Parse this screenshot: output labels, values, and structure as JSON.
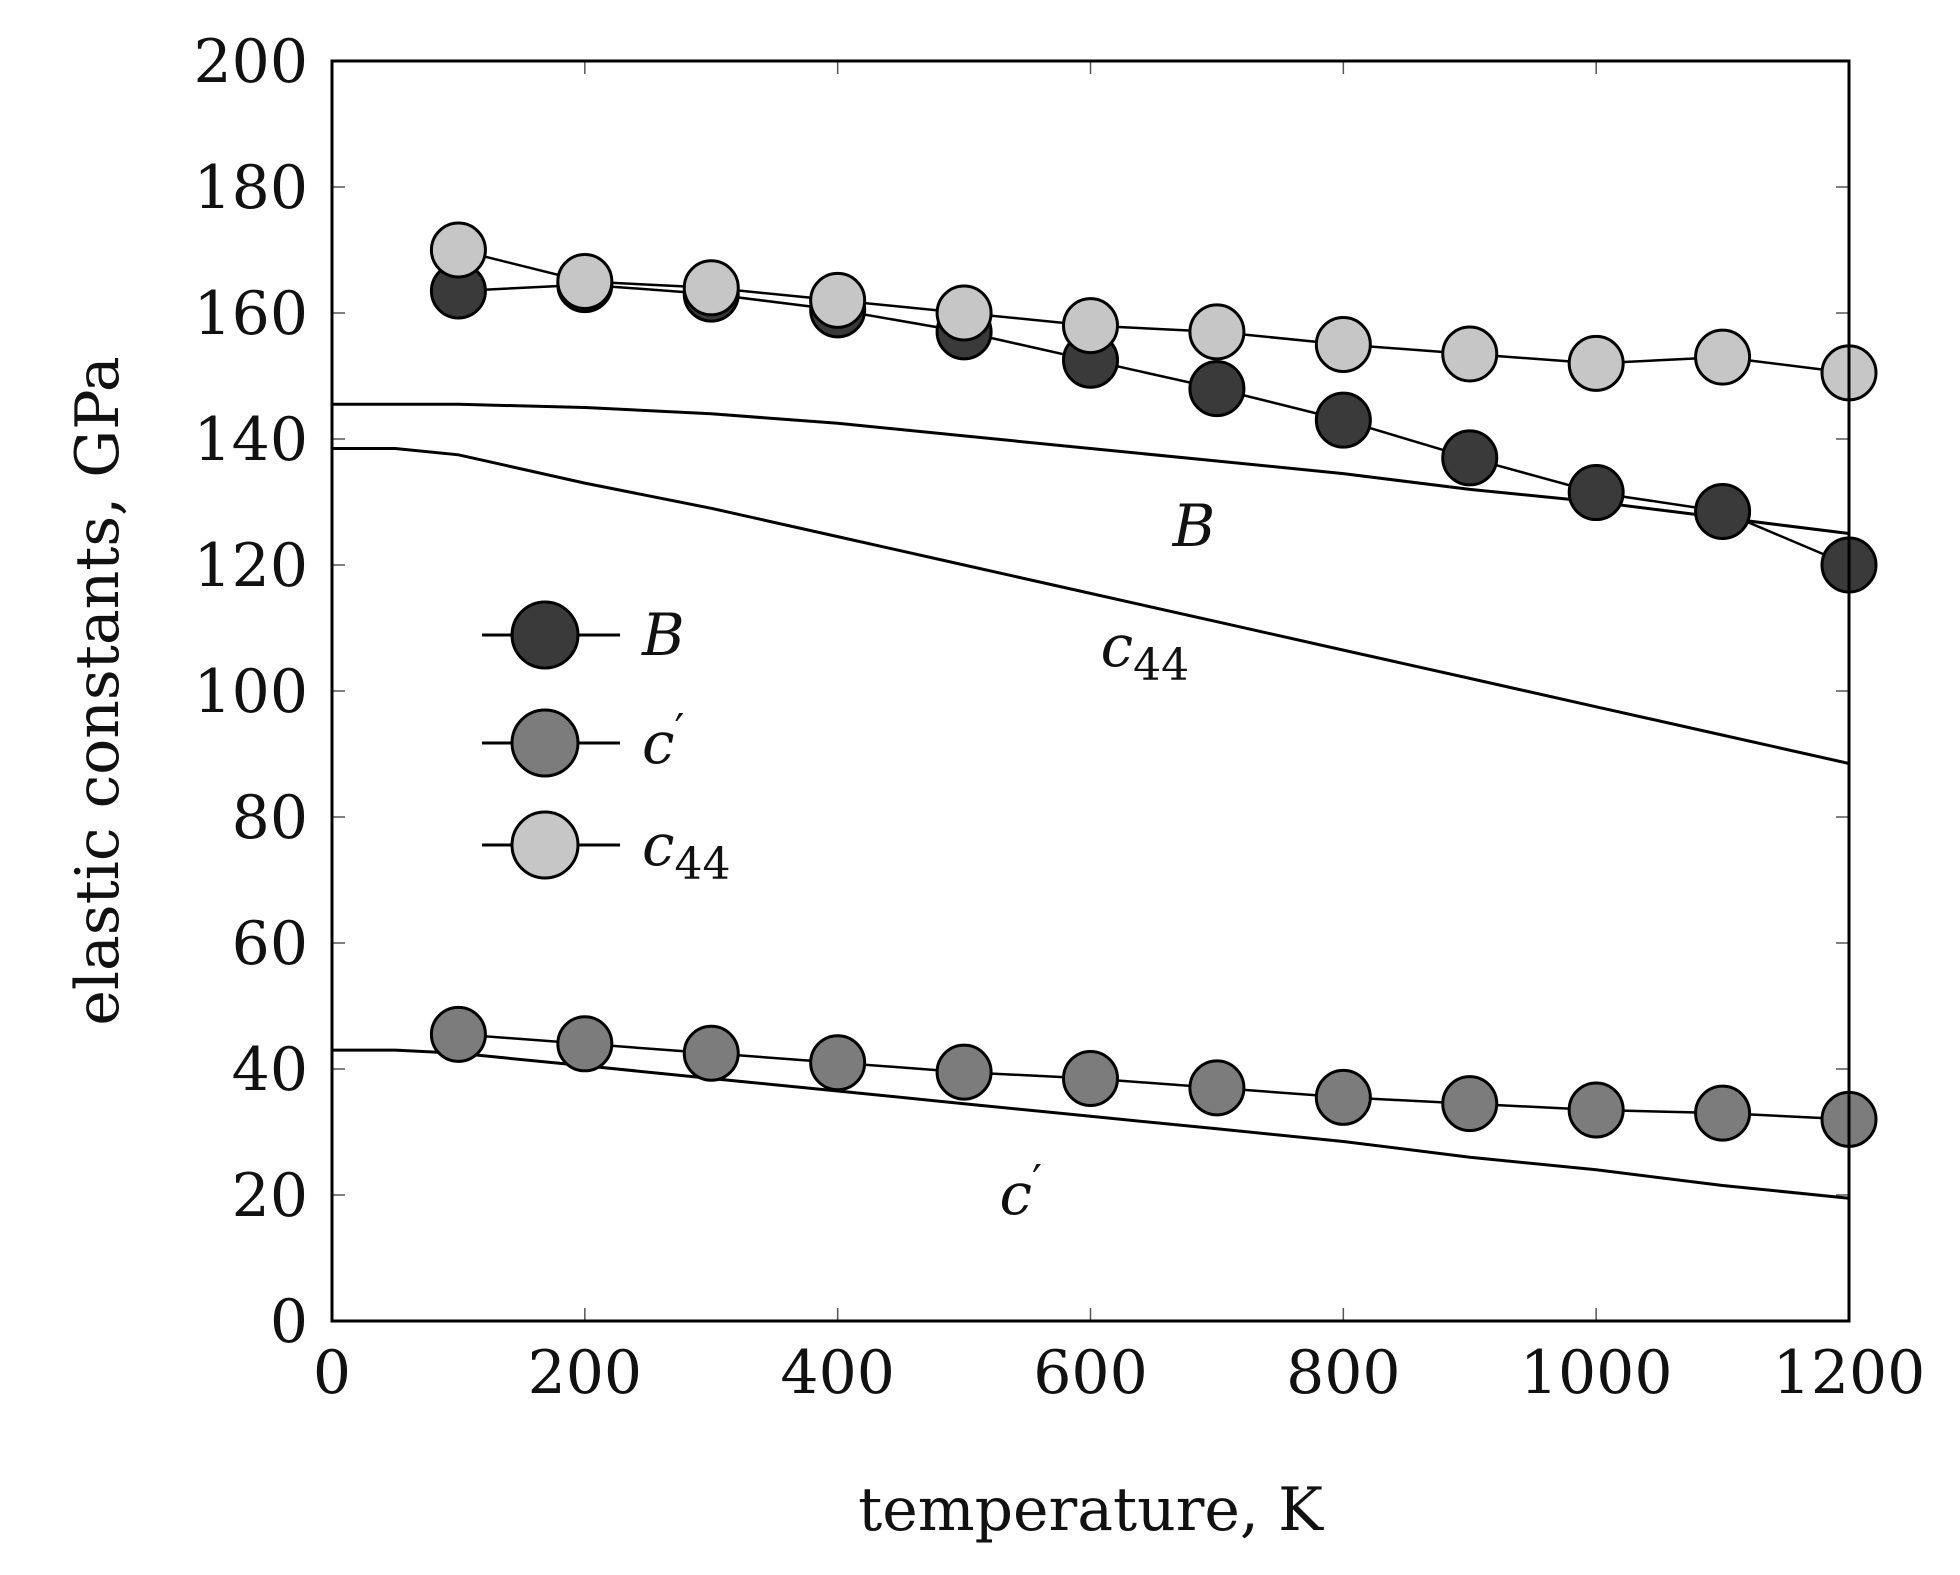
{
  "chart_data": {
    "type": "line",
    "title": "",
    "xlabel": "temperature, K",
    "ylabel": "elastic constants, GPa",
    "xlim": [
      0,
      1200
    ],
    "ylim": [
      0,
      200
    ],
    "xticks": [
      0,
      200,
      400,
      600,
      800,
      1000,
      1200
    ],
    "yticks": [
      0,
      20,
      40,
      60,
      80,
      100,
      120,
      140,
      160,
      180,
      200
    ],
    "grid": false,
    "legend_position": "center-left",
    "series": [
      {
        "name": "B",
        "color": "#3a3a3a",
        "marker": "circle",
        "x": [
          100,
          200,
          300,
          400,
          500,
          600,
          700,
          800,
          900,
          1000,
          1100,
          1200
        ],
        "values": [
          163.5,
          164.5,
          163,
          160.5,
          157,
          152.5,
          148,
          143,
          137,
          131.5,
          128.5,
          120
        ]
      },
      {
        "name": "c′",
        "color": "#7c7c7c",
        "marker": "circle",
        "x": [
          100,
          200,
          300,
          400,
          500,
          600,
          700,
          800,
          900,
          1000,
          1100,
          1200
        ],
        "values": [
          45.5,
          44,
          42.5,
          41,
          39.5,
          38.5,
          37,
          35.5,
          34.5,
          33.5,
          33,
          32
        ]
      },
      {
        "name": "c44",
        "color": "#c6c6c6",
        "marker": "circle",
        "x": [
          100,
          200,
          300,
          400,
          500,
          600,
          700,
          800,
          900,
          1000,
          1100,
          1200
        ],
        "values": [
          170,
          165,
          164,
          162,
          160,
          158,
          157,
          155,
          153.5,
          152,
          153,
          150.5
        ]
      }
    ],
    "reference_curves": [
      {
        "name": "B",
        "label_base": "B",
        "label_sub": "",
        "label_prime": false,
        "label_at": [
          665,
          123
        ],
        "x": [
          0,
          100,
          200,
          300,
          400,
          500,
          600,
          700,
          800,
          900,
          1000,
          1100,
          1200
        ],
        "values": [
          145.5,
          145.5,
          145,
          144,
          142.5,
          140.5,
          138.5,
          136.5,
          134.5,
          132,
          130,
          127.5,
          125
        ]
      },
      {
        "name": "c44",
        "label_base": "c",
        "label_sub": "44",
        "label_prime": false,
        "label_at": [
          608,
          104
        ],
        "x": [
          0,
          50,
          100,
          200,
          300,
          400,
          500,
          600,
          700,
          800,
          900,
          1000,
          1100,
          1200
        ],
        "values": [
          138.5,
          138.5,
          137.5,
          133,
          129,
          124.5,
          120,
          115.5,
          111,
          106.5,
          102,
          97.5,
          93,
          88.5
        ]
      },
      {
        "name": "c′",
        "label_base": "c",
        "label_sub": "",
        "label_prime": true,
        "label_at": [
          528,
          17
        ],
        "x": [
          0,
          50,
          100,
          200,
          300,
          400,
          500,
          600,
          700,
          800,
          900,
          1000,
          1100,
          1200
        ],
        "values": [
          43,
          43,
          42.5,
          40.5,
          38.5,
          36.5,
          34.5,
          32.5,
          30.5,
          28.5,
          26,
          24,
          21.5,
          19.5
        ]
      }
    ]
  }
}
